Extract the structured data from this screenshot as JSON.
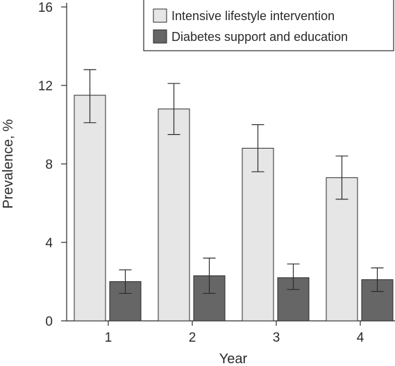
{
  "chart_data": {
    "type": "bar",
    "categories": [
      "1",
      "2",
      "3",
      "4"
    ],
    "series": [
      {
        "name": "Intensive lifestyle intervention",
        "values": [
          11.5,
          10.8,
          8.8,
          7.3
        ],
        "error_low": [
          10.1,
          9.5,
          7.6,
          6.2
        ],
        "error_high": [
          12.8,
          12.1,
          10.0,
          8.4
        ],
        "color": "#e6e6e6"
      },
      {
        "name": "Diabetes support and education",
        "values": [
          2.0,
          2.3,
          2.2,
          2.1
        ],
        "error_low": [
          1.4,
          1.4,
          1.6,
          1.5
        ],
        "error_high": [
          2.6,
          3.2,
          2.9,
          2.7
        ],
        "color": "#666666"
      }
    ],
    "xlabel": "Year",
    "ylabel": "Prevalence, %",
    "ylim": [
      0,
      16
    ],
    "yticks": [
      "0",
      "4",
      "8",
      "12",
      "16"
    ],
    "legend_position": "top-right",
    "grid": false
  }
}
